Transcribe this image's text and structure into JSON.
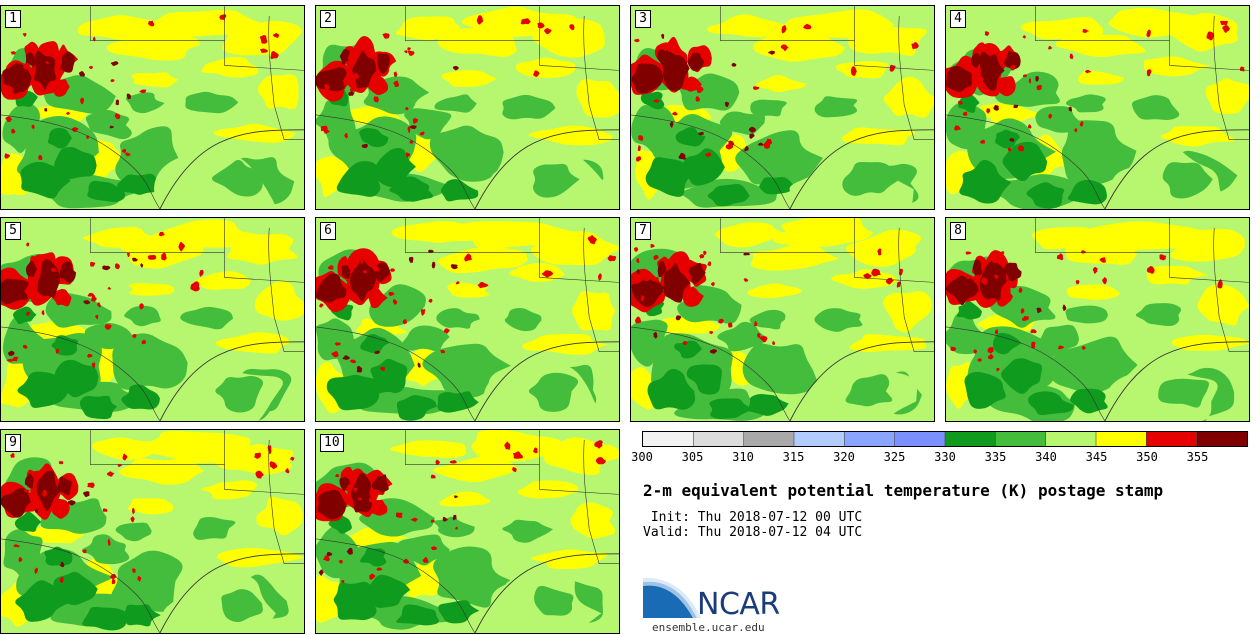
{
  "members": [
    "1",
    "2",
    "3",
    "4",
    "5",
    "6",
    "7",
    "8",
    "9",
    "10"
  ],
  "chart_data": {
    "type": "heatmap",
    "title": "2-m equivalent potential temperature (K) postage stamp",
    "colorbar": {
      "ticks": [
        "300",
        "305",
        "310",
        "315",
        "320",
        "325",
        "330",
        "335",
        "340",
        "345",
        "350",
        "355"
      ],
      "bins": [
        {
          "from": 300,
          "to": 305,
          "color": "#f2f2f2"
        },
        {
          "from": 305,
          "to": 310,
          "color": "#dcdcdc"
        },
        {
          "from": 310,
          "to": 315,
          "color": "#a9a9a9"
        },
        {
          "from": 315,
          "to": 320,
          "color": "#b3ccff"
        },
        {
          "from": 320,
          "to": 325,
          "color": "#8aa5ff"
        },
        {
          "from": 325,
          "to": 330,
          "color": "#7a90ff"
        },
        {
          "from": 330,
          "to": 335,
          "color": "#0f9b1e"
        },
        {
          "from": 335,
          "to": 340,
          "color": "#45bd3c"
        },
        {
          "from": 340,
          "to": 345,
          "color": "#b6f76f"
        },
        {
          "from": 345,
          "to": 350,
          "color": "#ffff00"
        },
        {
          "from": 350,
          "to": 355,
          "color": "#e60000"
        },
        {
          "from": 355,
          "to": 360,
          "color": "#800000"
        }
      ]
    }
  },
  "info": {
    "init_line": " Init: Thu 2018-07-12 00 UTC",
    "valid_line": "Valid: Thu 2018-07-12 04 UTC"
  },
  "logo": {
    "text": "NCAR",
    "url": "ensemble.ucar.edu",
    "colors": {
      "swoosh": "#1a6bb5",
      "text": "#1a3c7a"
    }
  },
  "colors": {
    "dark_green": "#0f9b1e",
    "mid_green": "#45bd3c",
    "light_green": "#b6f76f",
    "yellow": "#ffff00",
    "red": "#e60000",
    "dark_red": "#800000"
  }
}
